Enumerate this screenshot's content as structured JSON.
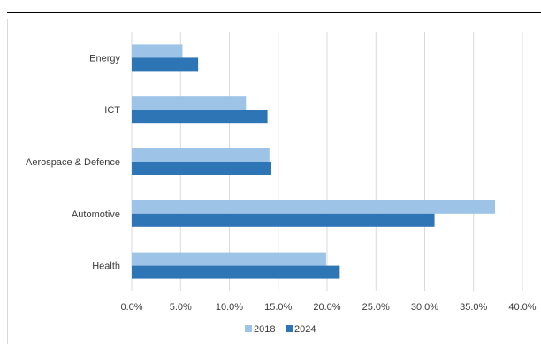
{
  "chart_data": {
    "type": "bar",
    "orientation": "horizontal",
    "categories": [
      "Energy",
      "ICT",
      "Aerospace & Defence",
      "Automotive",
      "Health"
    ],
    "series": [
      {
        "name": "2018",
        "color": "#9dc3e6",
        "values": [
          5.2,
          11.7,
          14.1,
          37.2,
          19.9
        ]
      },
      {
        "name": "2024",
        "color": "#2e75b6",
        "values": [
          6.8,
          13.9,
          14.3,
          31.0,
          21.3
        ]
      }
    ],
    "xlim": [
      0,
      40
    ],
    "x_ticks": [
      "0.0%",
      "5.0%",
      "10.0%",
      "15.0%",
      "20.0%",
      "25.0%",
      "30.0%",
      "35.0%",
      "40.0%"
    ],
    "grid": "vertical",
    "legend_position": "bottom",
    "title": "",
    "xlabel": "",
    "ylabel": ""
  }
}
